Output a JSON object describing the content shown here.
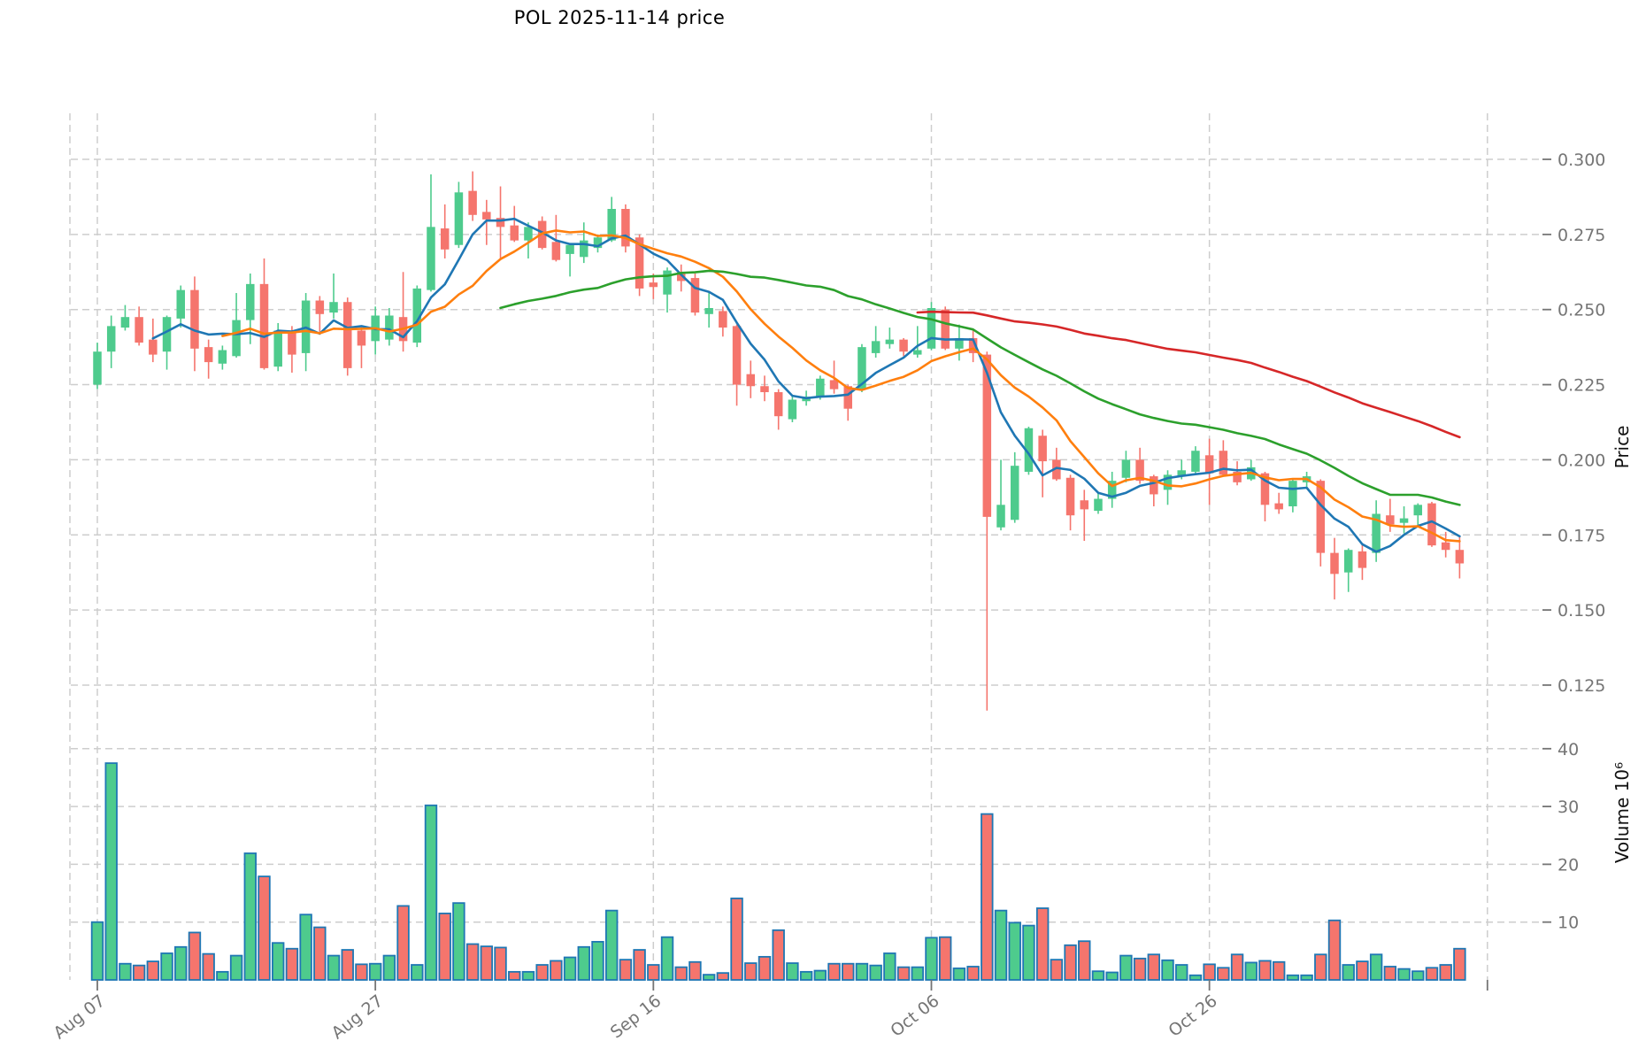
{
  "title": "POL  2025-11-14  price",
  "chart_data": {
    "type": "candlestick",
    "title": "POL 2025-11-14 price",
    "symbol": "POL",
    "as_of_date": "2025-11-14",
    "ylabel": "Price",
    "ylabel_lower": "Volume  10⁶",
    "grid": true,
    "legend_position": "none",
    "ylim": [
      0.1156,
      0.3153
    ],
    "volume_ylim": [
      0,
      45
    ],
    "price_ticks": [
      0.3,
      0.275,
      0.25,
      0.225,
      0.2,
      0.175,
      0.15,
      0.125
    ],
    "volume_ticks": [
      40,
      30,
      20,
      10
    ],
    "date_ticks": [
      {
        "index": 0,
        "label": "Aug 07"
      },
      {
        "index": 20,
        "label": "Aug 27"
      },
      {
        "index": 40,
        "label": "Sep 16"
      },
      {
        "index": 60,
        "label": "Oct 06"
      },
      {
        "index": 80,
        "label": "Oct 26"
      },
      {
        "index": 100,
        "label": ""
      }
    ],
    "moving_averages": [
      {
        "window": 5,
        "color": "#1f77b4"
      },
      {
        "window": 10,
        "color": "#ff7f0e"
      },
      {
        "window": 30,
        "color": "#2ca02c"
      },
      {
        "window": 60,
        "color": "#d62728"
      }
    ],
    "style": {
      "up_color": "#4ecb8d",
      "down_color": "#f5756d",
      "volume_edge_color": "#1f77b4",
      "grid_color": "#cdcdcd",
      "tick_label_color": "#757575",
      "spine_color": "#cdcdcd"
    },
    "candles_format": [
      "date",
      "open",
      "high",
      "low",
      "close",
      "volume_millions"
    ],
    "candles": [
      [
        "Aug 07",
        0.225,
        0.239,
        0.2235,
        0.236,
        10.0
      ],
      [
        "Aug 08",
        0.236,
        0.248,
        0.2305,
        0.2445,
        37.5
      ],
      [
        "Aug 09",
        0.244,
        0.2515,
        0.243,
        0.2475,
        2.8
      ],
      [
        "Aug 10",
        0.2475,
        0.251,
        0.238,
        0.239,
        2.5
      ],
      [
        "Aug 11",
        0.24,
        0.247,
        0.2325,
        0.235,
        3.2
      ],
      [
        "Aug 12",
        0.236,
        0.248,
        0.23,
        0.2475,
        4.6
      ],
      [
        "Aug 13",
        0.247,
        0.258,
        0.244,
        0.2565,
        5.7
      ],
      [
        "Aug 14",
        0.2565,
        0.261,
        0.2295,
        0.237,
        8.2
      ],
      [
        "Aug 15",
        0.2375,
        0.24,
        0.227,
        0.2325,
        4.5
      ],
      [
        "Aug 16",
        0.232,
        0.238,
        0.23,
        0.2365,
        1.4
      ],
      [
        "Aug 17",
        0.2345,
        0.2555,
        0.234,
        0.2465,
        4.2
      ],
      [
        "Aug 18",
        0.2465,
        0.262,
        0.2385,
        0.2585,
        21.9
      ],
      [
        "Aug 19",
        0.2585,
        0.267,
        0.23,
        0.2305,
        17.9
      ],
      [
        "Aug 20",
        0.231,
        0.2455,
        0.2295,
        0.243,
        6.4
      ],
      [
        "Aug 21",
        0.243,
        0.2445,
        0.229,
        0.235,
        5.4
      ],
      [
        "Aug 22",
        0.2355,
        0.2555,
        0.2295,
        0.253,
        11.3
      ],
      [
        "Aug 23",
        0.253,
        0.2545,
        0.2425,
        0.2485,
        9.1
      ],
      [
        "Aug 24",
        0.249,
        0.262,
        0.247,
        0.2525,
        4.2
      ],
      [
        "Aug 25",
        0.2525,
        0.254,
        0.228,
        0.2305,
        5.2
      ],
      [
        "Aug 26",
        0.243,
        0.2445,
        0.2305,
        0.238,
        2.7
      ],
      [
        "Aug 27",
        0.2395,
        0.251,
        0.235,
        0.248,
        2.8
      ],
      [
        "Aug 28",
        0.24,
        0.2505,
        0.238,
        0.248,
        4.2
      ],
      [
        "Aug 29",
        0.2475,
        0.2625,
        0.236,
        0.2395,
        12.8
      ],
      [
        "Aug 30",
        0.239,
        0.258,
        0.2375,
        0.257,
        2.6
      ],
      [
        "Aug 31",
        0.2565,
        0.295,
        0.256,
        0.2775,
        30.2
      ],
      [
        "Sep 01",
        0.277,
        0.285,
        0.267,
        0.27,
        11.5
      ],
      [
        "Sep 02",
        0.2715,
        0.2925,
        0.2705,
        0.289,
        13.3
      ],
      [
        "Sep 03",
        0.2895,
        0.296,
        0.2795,
        0.2815,
        6.2
      ],
      [
        "Sep 04",
        0.2825,
        0.2865,
        0.2715,
        0.28,
        5.8
      ],
      [
        "Sep 05",
        0.2805,
        0.291,
        0.2665,
        0.2775,
        5.6
      ],
      [
        "Sep 06",
        0.278,
        0.2845,
        0.2725,
        0.273,
        1.4
      ],
      [
        "Sep 07",
        0.273,
        0.279,
        0.267,
        0.2775,
        1.4
      ],
      [
        "Sep 08",
        0.2795,
        0.281,
        0.27,
        0.2705,
        2.6
      ],
      [
        "Sep 09",
        0.2725,
        0.2815,
        0.266,
        0.2665,
        3.3
      ],
      [
        "Sep 10",
        0.2685,
        0.272,
        0.261,
        0.2715,
        3.9
      ],
      [
        "Sep 11",
        0.2675,
        0.279,
        0.2655,
        0.273,
        5.7
      ],
      [
        "Sep 12",
        0.2705,
        0.275,
        0.269,
        0.274,
        6.6
      ],
      [
        "Sep 13",
        0.273,
        0.2875,
        0.2725,
        0.2835,
        12.0
      ],
      [
        "Sep 14",
        0.2835,
        0.285,
        0.269,
        0.271,
        3.5
      ],
      [
        "Sep 15",
        0.274,
        0.275,
        0.2545,
        0.257,
        5.2
      ],
      [
        "Sep 16",
        0.259,
        0.262,
        0.2535,
        0.2575,
        2.6
      ],
      [
        "Sep 17",
        0.255,
        0.264,
        0.249,
        0.263,
        7.4
      ],
      [
        "Sep 18",
        0.262,
        0.265,
        0.256,
        0.2595,
        2.2
      ],
      [
        "Sep 19",
        0.2605,
        0.262,
        0.248,
        0.249,
        3.1
      ],
      [
        "Sep 20",
        0.2485,
        0.256,
        0.244,
        0.2505,
        0.9
      ],
      [
        "Sep 21",
        0.2495,
        0.251,
        0.241,
        0.244,
        1.2
      ],
      [
        "Sep 22",
        0.2445,
        0.245,
        0.218,
        0.225,
        14.1
      ],
      [
        "Sep 23",
        0.2285,
        0.233,
        0.2205,
        0.2245,
        2.9
      ],
      [
        "Sep 24",
        0.2245,
        0.228,
        0.2195,
        0.2225,
        4.0
      ],
      [
        "Sep 25",
        0.2225,
        0.2235,
        0.21,
        0.2145,
        8.6
      ],
      [
        "Sep 26",
        0.2135,
        0.221,
        0.2125,
        0.22,
        2.9
      ],
      [
        "Sep 27",
        0.2195,
        0.223,
        0.218,
        0.221,
        1.4
      ],
      [
        "Sep 28",
        0.221,
        0.228,
        0.22,
        0.227,
        1.6
      ],
      [
        "Sep 29",
        0.2265,
        0.233,
        0.222,
        0.2235,
        2.8
      ],
      [
        "Sep 30",
        0.2245,
        0.225,
        0.213,
        0.217,
        2.8
      ],
      [
        "Oct 01",
        0.2235,
        0.2385,
        0.2225,
        0.2375,
        2.8
      ],
      [
        "Oct 02",
        0.2355,
        0.2445,
        0.234,
        0.2395,
        2.5
      ],
      [
        "Oct 03",
        0.2385,
        0.244,
        0.237,
        0.24,
        4.6
      ],
      [
        "Oct 04",
        0.24,
        0.2405,
        0.2345,
        0.236,
        2.2
      ],
      [
        "Oct 05",
        0.235,
        0.2445,
        0.234,
        0.2365,
        2.2
      ],
      [
        "Oct 06",
        0.237,
        0.2525,
        0.2365,
        0.2505,
        7.3
      ],
      [
        "Oct 07",
        0.25,
        0.251,
        0.2365,
        0.237,
        7.4
      ],
      [
        "Oct 08",
        0.237,
        0.245,
        0.233,
        0.2405,
        2.0
      ],
      [
        "Oct 09",
        0.2405,
        0.243,
        0.2325,
        0.2355,
        2.3
      ],
      [
        "Oct 10",
        0.235,
        0.236,
        0.1165,
        0.181,
        28.7
      ],
      [
        "Oct 11",
        0.1775,
        0.2,
        0.1765,
        0.185,
        12.0
      ],
      [
        "Oct 12",
        0.18,
        0.2025,
        0.179,
        0.198,
        9.9
      ],
      [
        "Oct 13",
        0.196,
        0.211,
        0.195,
        0.2105,
        9.4
      ],
      [
        "Oct 14",
        0.208,
        0.21,
        0.1875,
        0.1995,
        12.4
      ],
      [
        "Oct 15",
        0.2,
        0.204,
        0.193,
        0.1935,
        3.5
      ],
      [
        "Oct 16",
        0.194,
        0.195,
        0.1765,
        0.1815,
        6.0
      ],
      [
        "Oct 17",
        0.1865,
        0.19,
        0.173,
        0.1835,
        6.7
      ],
      [
        "Oct 18",
        0.183,
        0.189,
        0.182,
        0.187,
        1.5
      ],
      [
        "Oct 19",
        0.187,
        0.196,
        0.184,
        0.193,
        1.3
      ],
      [
        "Oct 20",
        0.194,
        0.203,
        0.1925,
        0.2,
        4.2
      ],
      [
        "Oct 21",
        0.2,
        0.204,
        0.192,
        0.193,
        3.7
      ],
      [
        "Oct 22",
        0.1945,
        0.195,
        0.1845,
        0.1885,
        4.4
      ],
      [
        "Oct 23",
        0.19,
        0.1965,
        0.185,
        0.195,
        3.4
      ],
      [
        "Oct 24",
        0.1945,
        0.2,
        0.1935,
        0.1965,
        2.6
      ],
      [
        "Oct 25",
        0.196,
        0.2045,
        0.195,
        0.203,
        0.8
      ],
      [
        "Oct 26",
        0.2015,
        0.207,
        0.185,
        0.1955,
        2.7
      ],
      [
        "Oct 27",
        0.203,
        0.2065,
        0.1945,
        0.195,
        2.1
      ],
      [
        "Oct 28",
        0.196,
        0.1995,
        0.1915,
        0.1925,
        4.4
      ],
      [
        "Oct 29",
        0.1935,
        0.2,
        0.193,
        0.1975,
        3.0
      ],
      [
        "Oct 30",
        0.1955,
        0.196,
        0.1795,
        0.185,
        3.3
      ],
      [
        "Oct 31",
        0.1855,
        0.189,
        0.182,
        0.1835,
        3.1
      ],
      [
        "Nov 01",
        0.1845,
        0.1935,
        0.1825,
        0.193,
        0.8
      ],
      [
        "Nov 02",
        0.1925,
        0.196,
        0.191,
        0.1945,
        0.8
      ],
      [
        "Nov 03",
        0.193,
        0.1935,
        0.1645,
        0.169,
        4.4
      ],
      [
        "Nov 04",
        0.169,
        0.174,
        0.1535,
        0.162,
        10.3
      ],
      [
        "Nov 05",
        0.1625,
        0.1705,
        0.156,
        0.17,
        2.6
      ],
      [
        "Nov 06",
        0.1695,
        0.172,
        0.16,
        0.164,
        3.2
      ],
      [
        "Nov 07",
        0.169,
        0.1865,
        0.166,
        0.182,
        4.4
      ],
      [
        "Nov 08",
        0.1815,
        0.187,
        0.176,
        0.1785,
        2.3
      ],
      [
        "Nov 09",
        0.179,
        0.1845,
        0.1755,
        0.1805,
        1.9
      ],
      [
        "Nov 10",
        0.1815,
        0.1855,
        0.178,
        0.185,
        1.5
      ],
      [
        "Nov 11",
        0.1855,
        0.186,
        0.171,
        0.1715,
        2.1
      ],
      [
        "Nov 12",
        0.1725,
        0.176,
        0.1675,
        0.17,
        2.6
      ],
      [
        "Nov 13",
        0.17,
        0.1745,
        0.1605,
        0.1655,
        5.4
      ]
    ]
  }
}
